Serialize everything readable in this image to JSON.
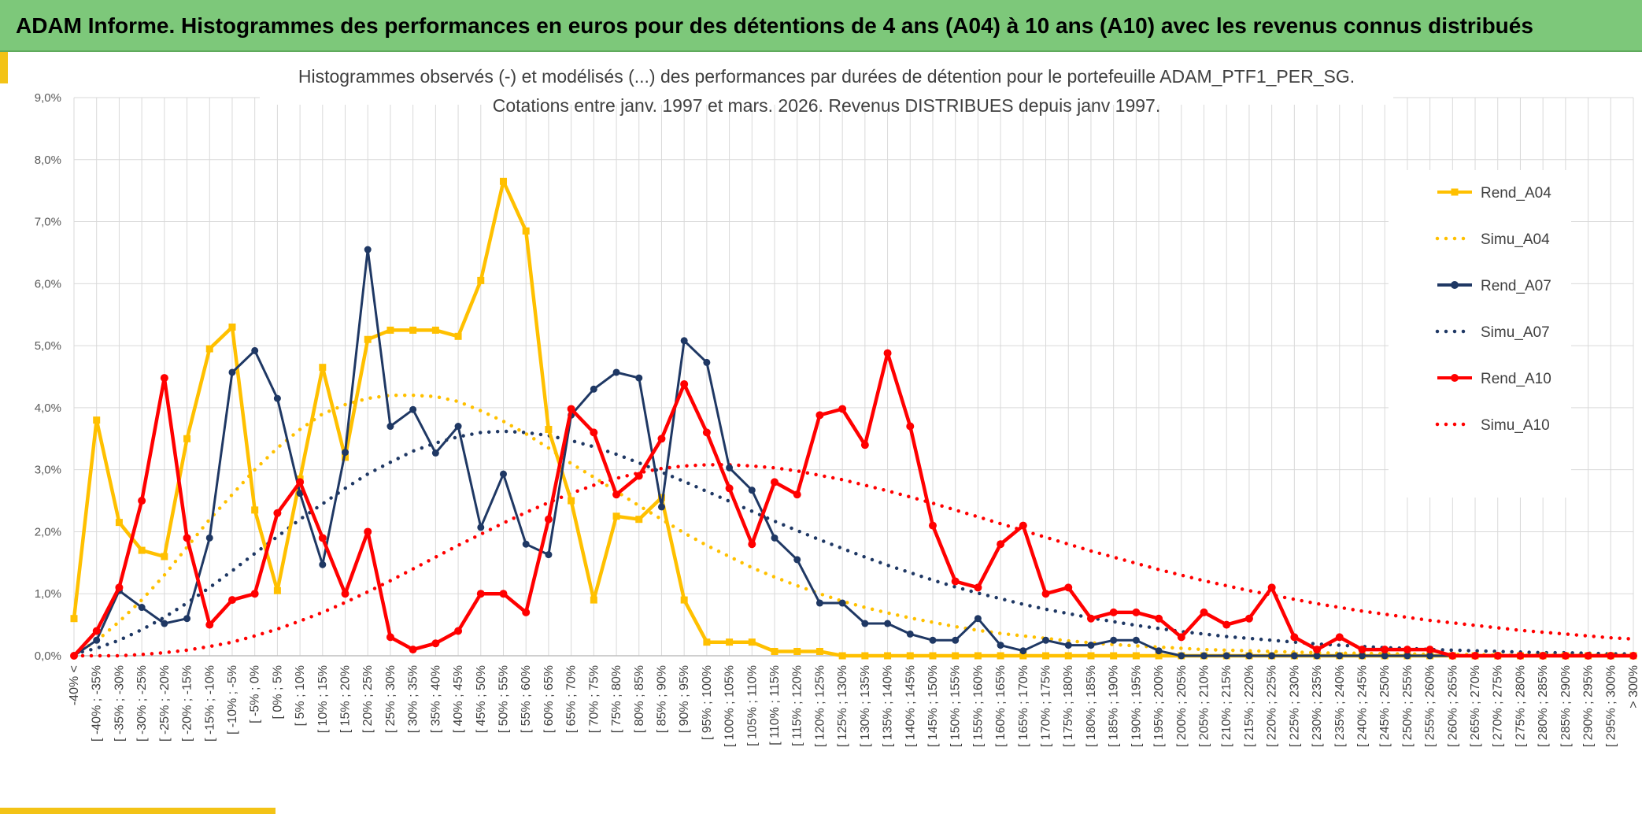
{
  "header": {
    "title": "ADAM Informe. Histogrammes des performances en euros pour des détentions de 4 ans (A04) à 10 ans (A10) avec les revenus connus distribués"
  },
  "colors": {
    "banner": "#7dc87a",
    "a04": "#ffc000",
    "a07": "#1f3864",
    "a10": "#ff0000",
    "grid": "#d9d9d9"
  },
  "chart_data": {
    "type": "line",
    "title": "Histogrammes observés (-) et modélisés (...) des performances par durées de détention pour le portefeuille ADAM_PTF1_PER_SG.",
    "subtitle": "Cotations entre janv. 1997 et mars. 2026. Revenus DISTRIBUES depuis janv 1997.",
    "ylim": [
      0,
      9
    ],
    "yticks": [
      "0,0%",
      "1,0%",
      "2,0%",
      "3,0%",
      "4,0%",
      "5,0%",
      "6,0%",
      "7,0%",
      "8,0%",
      "9,0%"
    ],
    "categories": [
      "-40% <",
      "[ -40% ; -35%",
      "[ -35% ; -30%",
      "[ -30% ; -25%",
      "[ -25% ; -20%",
      "[ -20% ; -15%",
      "[ -15% ; -10%",
      "[ -10% ; -5%",
      "[ -5% ; 0%",
      "[ 0% ; 5%",
      "[ 5% ; 10%",
      "[ 10% ; 15%",
      "[ 15% ; 20%",
      "[ 20% ; 25%",
      "[ 25% ; 30%",
      "[ 30% ; 35%",
      "[ 35% ; 40%",
      "[ 40% ; 45%",
      "[ 45% ; 50%",
      "[ 50% ; 55%",
      "[ 55% ; 60%",
      "[ 60% ; 65%",
      "[ 65% ; 70%",
      "[ 70% ; 75%",
      "[ 75% ; 80%",
      "[ 80% ; 85%",
      "[ 85% ; 90%",
      "[ 90% ; 95%",
      "[ 95% ; 100%",
      "[ 100% ; 105%",
      "[ 105% ; 110%",
      "[ 110% ; 115%",
      "[ 115% ; 120%",
      "[ 120% ; 125%",
      "[ 125% ; 130%",
      "[ 130% ; 135%",
      "[ 135% ; 140%",
      "[ 140% ; 145%",
      "[ 145% ; 150%",
      "[ 150% ; 155%",
      "[ 155% ; 160%",
      "[ 160% ; 165%",
      "[ 165% ; 170%",
      "[ 170% ; 175%",
      "[ 175% ; 180%",
      "[ 180% ; 185%",
      "[ 185% ; 190%",
      "[ 190% ; 195%",
      "[ 195% ; 200%",
      "[ 200% ; 205%",
      "[ 205% ; 210%",
      "[ 210% ; 215%",
      "[ 215% ; 220%",
      "[ 220% ; 225%",
      "[ 225% ; 230%",
      "[ 230% ; 235%",
      "[ 235% ; 240%",
      "[ 240% ; 245%",
      "[ 245% ; 250%",
      "[ 250% ; 255%",
      "[ 255% ; 260%",
      "[ 260% ; 265%",
      "[ 265% ; 270%",
      "[ 270% ; 275%",
      "[ 275% ; 280%",
      "[ 280% ; 285%",
      "[ 285% ; 290%",
      "[ 290% ; 295%",
      "[ 295% ; 300%",
      "> 300%"
    ],
    "series": [
      {
        "name": "Rend_A04",
        "style": "solid",
        "marker": "square",
        "color": "#ffc000",
        "values": [
          0.6,
          3.8,
          2.15,
          1.7,
          1.6,
          3.5,
          4.95,
          5.3,
          2.35,
          1.05,
          2.85,
          4.65,
          3.2,
          5.1,
          5.25,
          5.25,
          5.25,
          5.15,
          6.05,
          7.65,
          6.85,
          3.65,
          2.5,
          0.9,
          2.25,
          2.2,
          2.55,
          0.9,
          0.22,
          0.22,
          0.22,
          0.07,
          0.07,
          0.07,
          0,
          0,
          0,
          0,
          0,
          0,
          0,
          0,
          0,
          0,
          0,
          0,
          0,
          0,
          0,
          0,
          0,
          0,
          0,
          0,
          0,
          0,
          0,
          0,
          0,
          0,
          0,
          0,
          0,
          0,
          0,
          0,
          0,
          0,
          0,
          0
        ]
      },
      {
        "name": "Simu_A04",
        "style": "dotted",
        "color": "#ffc000",
        "values": [
          0.02,
          0.24,
          0.55,
          0.9,
          1.3,
          1.75,
          2.2,
          2.6,
          3.0,
          3.35,
          3.65,
          3.9,
          4.05,
          4.15,
          4.2,
          4.2,
          4.18,
          4.1,
          3.95,
          3.78,
          3.58,
          3.35,
          3.1,
          2.88,
          2.65,
          2.42,
          2.2,
          1.98,
          1.78,
          1.6,
          1.42,
          1.27,
          1.13,
          1.0,
          0.88,
          0.78,
          0.69,
          0.61,
          0.54,
          0.47,
          0.41,
          0.36,
          0.32,
          0.28,
          0.24,
          0.21,
          0.18,
          0.16,
          0.14,
          0.12,
          0.1,
          0.09,
          0.08,
          0.07,
          0.06,
          0.05,
          0.04,
          0.04,
          0.03,
          0.03,
          0.02,
          0.02,
          0.02,
          0.01,
          0.01,
          0.01,
          0.01,
          0.01,
          0.01,
          0.01
        ]
      },
      {
        "name": "Rend_A07",
        "style": "solid",
        "marker": "circle",
        "color": "#1f3864",
        "values": [
          0,
          0.25,
          1.05,
          0.78,
          0.52,
          0.6,
          1.9,
          4.57,
          4.92,
          4.15,
          2.62,
          1.47,
          3.28,
          6.55,
          3.7,
          3.97,
          3.27,
          3.7,
          2.07,
          2.93,
          1.8,
          1.63,
          3.88,
          4.3,
          4.57,
          4.48,
          2.4,
          5.08,
          4.73,
          3.03,
          2.67,
          1.9,
          1.55,
          0.85,
          0.85,
          0.52,
          0.52,
          0.35,
          0.25,
          0.25,
          0.6,
          0.17,
          0.08,
          0.25,
          0.17,
          0.17,
          0.25,
          0.25,
          0.08,
          0,
          0,
          0,
          0,
          0,
          0,
          0,
          0,
          0,
          0,
          0,
          0,
          0,
          0,
          0,
          0,
          0,
          0,
          0,
          0,
          0
        ]
      },
      {
        "name": "Simu_A07",
        "style": "dotted",
        "color": "#1f3864",
        "values": [
          0.03,
          0.12,
          0.25,
          0.42,
          0.62,
          0.85,
          1.1,
          1.37,
          1.65,
          1.92,
          2.2,
          2.45,
          2.7,
          2.93,
          3.12,
          3.3,
          3.43,
          3.53,
          3.6,
          3.62,
          3.6,
          3.55,
          3.47,
          3.37,
          3.25,
          3.11,
          2.96,
          2.81,
          2.65,
          2.49,
          2.33,
          2.17,
          2.02,
          1.87,
          1.73,
          1.59,
          1.46,
          1.34,
          1.22,
          1.11,
          1.01,
          0.92,
          0.83,
          0.75,
          0.68,
          0.61,
          0.55,
          0.49,
          0.44,
          0.39,
          0.35,
          0.31,
          0.28,
          0.25,
          0.22,
          0.19,
          0.17,
          0.15,
          0.13,
          0.12,
          0.1,
          0.09,
          0.08,
          0.07,
          0.06,
          0.05,
          0.05,
          0.04,
          0.03,
          0.03
        ]
      },
      {
        "name": "Rend_A10",
        "style": "solid",
        "marker": "circle",
        "color": "#ff0000",
        "values": [
          0,
          0.4,
          1.1,
          2.5,
          4.48,
          1.9,
          0.5,
          0.9,
          1.0,
          2.3,
          2.8,
          1.9,
          1.0,
          2.0,
          0.3,
          0.1,
          0.2,
          0.4,
          1.0,
          1.0,
          0.7,
          2.2,
          3.98,
          3.6,
          2.6,
          2.9,
          3.5,
          4.38,
          3.6,
          2.7,
          1.8,
          2.8,
          2.6,
          3.88,
          3.98,
          3.4,
          4.88,
          3.7,
          2.1,
          1.2,
          1.1,
          1.8,
          2.1,
          1.0,
          1.1,
          0.6,
          0.7,
          0.7,
          0.6,
          0.3,
          0.7,
          0.5,
          0.6,
          1.1,
          0.3,
          0.1,
          0.3,
          0.1,
          0.1,
          0.1,
          0.1,
          0,
          0,
          0,
          0,
          0,
          0,
          0,
          0,
          0
        ]
      },
      {
        "name": "Simu_A10",
        "style": "dotted",
        "color": "#ff0000",
        "values": [
          0,
          0,
          0,
          0.02,
          0.05,
          0.09,
          0.15,
          0.22,
          0.32,
          0.43,
          0.56,
          0.7,
          0.86,
          1.03,
          1.21,
          1.4,
          1.59,
          1.78,
          1.96,
          2.14,
          2.31,
          2.47,
          2.62,
          2.75,
          2.86,
          2.95,
          3.02,
          3.06,
          3.08,
          3.08,
          3.06,
          3.03,
          2.98,
          2.91,
          2.84,
          2.75,
          2.66,
          2.56,
          2.46,
          2.35,
          2.24,
          2.13,
          2.02,
          1.91,
          1.8,
          1.69,
          1.59,
          1.49,
          1.39,
          1.3,
          1.21,
          1.13,
          1.05,
          0.98,
          0.91,
          0.84,
          0.78,
          0.72,
          0.67,
          0.62,
          0.57,
          0.53,
          0.49,
          0.45,
          0.41,
          0.38,
          0.35,
          0.32,
          0.29,
          0.27
        ]
      }
    ],
    "legend": [
      "Rend_A04",
      "Simu_A04",
      "Rend_A07",
      "Simu_A07",
      "Rend_A10",
      "Simu_A10"
    ],
    "legend_position": "right"
  }
}
